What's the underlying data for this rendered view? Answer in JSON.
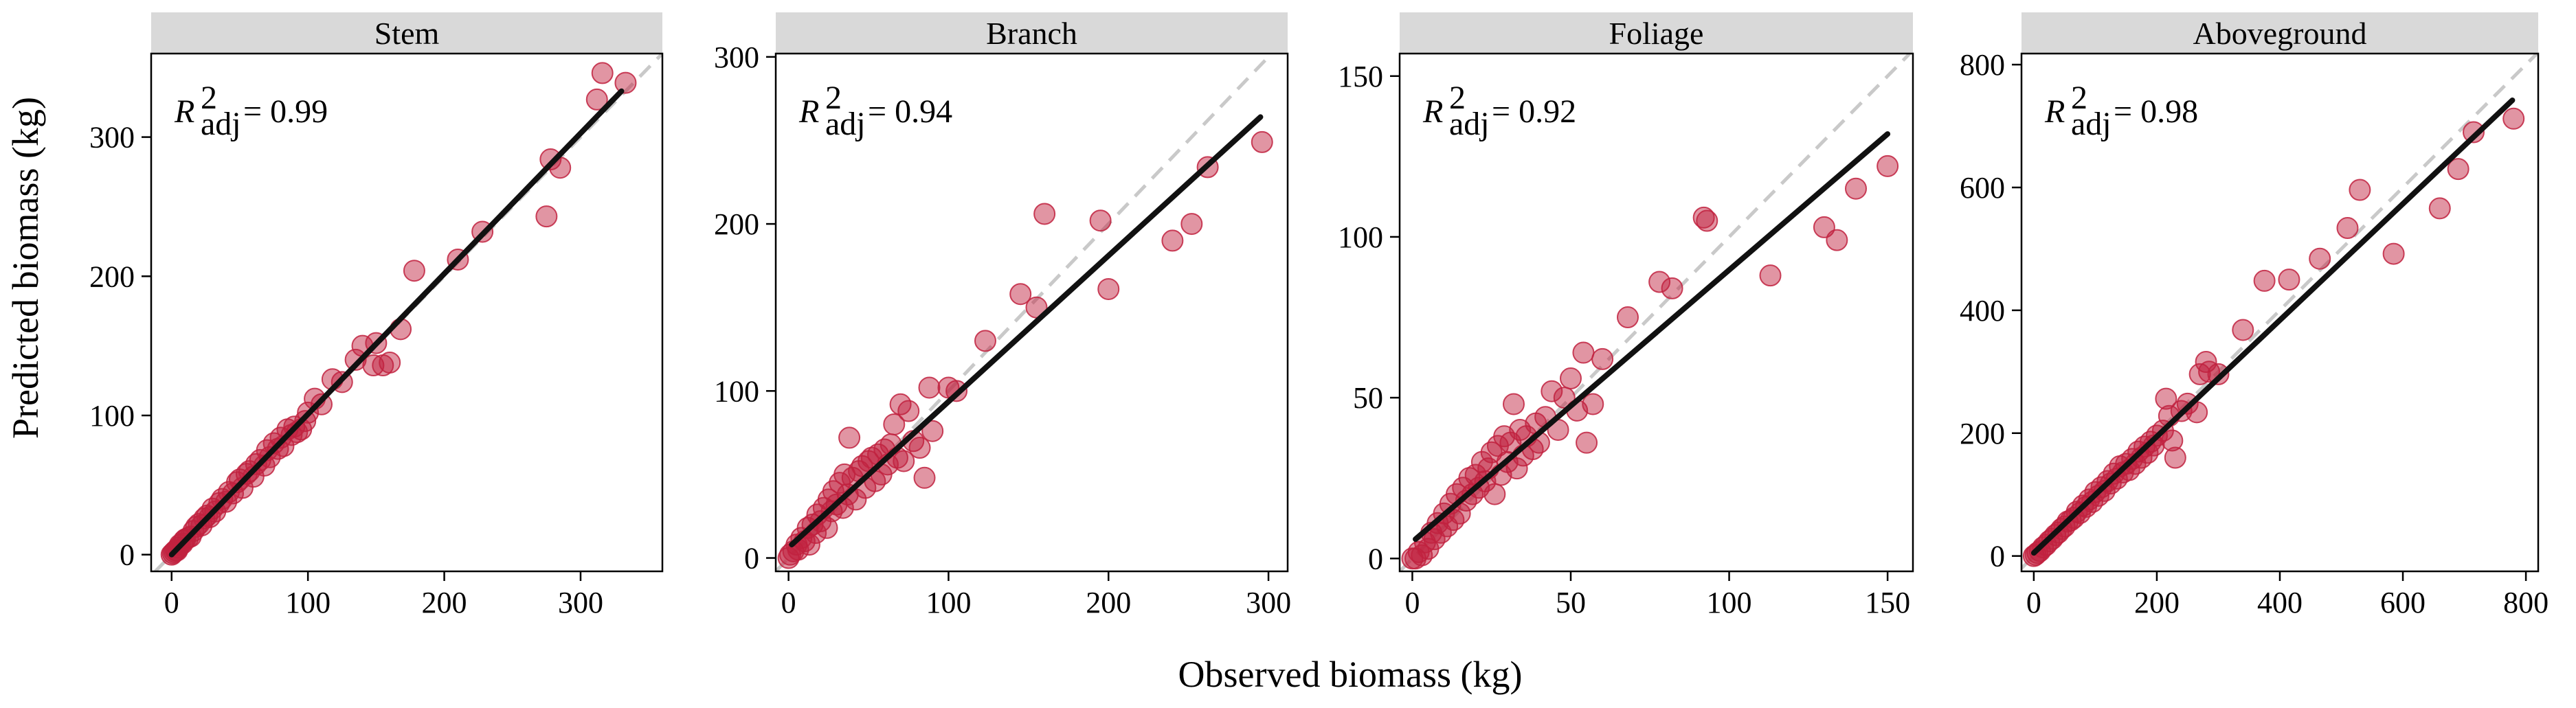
{
  "chart_data": {
    "type": "scatter",
    "xlabel": "Observed biomass (kg)",
    "ylabel": "Predicted biomass (kg)",
    "colors": {
      "point": "#c1223f",
      "fit_line": "#111111",
      "identity_line": "#c9c9c9",
      "strip": "#d9d9d9"
    },
    "panels": [
      {
        "title": "Stem",
        "r2_symbol": "R",
        "r2_sup": "2",
        "r2_sub": "adj",
        "r2_value": "= 0.99",
        "xlim": [
          -15,
          360
        ],
        "ylim": [
          -12,
          360
        ],
        "xticks": [
          0,
          100,
          200,
          300
        ],
        "yticks": [
          0,
          100,
          200,
          300
        ],
        "fit_line": [
          [
            0,
            0
          ],
          [
            330,
            333
          ]
        ],
        "points": [
          [
            0,
            0
          ],
          [
            1,
            1
          ],
          [
            2,
            2
          ],
          [
            3,
            3
          ],
          [
            4,
            3
          ],
          [
            5,
            5
          ],
          [
            6,
            7
          ],
          [
            8,
            8
          ],
          [
            9,
            10
          ],
          [
            10,
            11
          ],
          [
            12,
            12
          ],
          [
            14,
            13
          ],
          [
            16,
            17
          ],
          [
            18,
            20
          ],
          [
            20,
            22
          ],
          [
            22,
            21
          ],
          [
            24,
            26
          ],
          [
            26,
            28
          ],
          [
            28,
            27
          ],
          [
            30,
            33
          ],
          [
            32,
            31
          ],
          [
            35,
            37
          ],
          [
            37,
            40
          ],
          [
            40,
            38
          ],
          [
            42,
            45
          ],
          [
            45,
            44
          ],
          [
            48,
            52
          ],
          [
            50,
            54
          ],
          [
            52,
            48
          ],
          [
            55,
            58
          ],
          [
            57,
            60
          ],
          [
            60,
            56
          ],
          [
            62,
            65
          ],
          [
            65,
            68
          ],
          [
            68,
            64
          ],
          [
            70,
            75
          ],
          [
            72,
            70
          ],
          [
            75,
            80
          ],
          [
            78,
            76
          ],
          [
            80,
            84
          ],
          [
            82,
            78
          ],
          [
            85,
            90
          ],
          [
            88,
            86
          ],
          [
            90,
            92
          ],
          [
            92,
            88
          ],
          [
            95,
            90
          ],
          [
            98,
            96
          ],
          [
            100,
            102
          ],
          [
            105,
            112
          ],
          [
            110,
            108
          ],
          [
            118,
            126
          ],
          [
            125,
            124
          ],
          [
            135,
            140
          ],
          [
            140,
            150
          ],
          [
            148,
            136
          ],
          [
            150,
            152
          ],
          [
            155,
            136
          ],
          [
            160,
            138
          ],
          [
            168,
            162
          ],
          [
            178,
            204
          ],
          [
            210,
            212
          ],
          [
            228,
            232
          ],
          [
            275,
            243
          ],
          [
            278,
            284
          ],
          [
            285,
            278
          ],
          [
            312,
            327
          ],
          [
            316,
            346
          ],
          [
            333,
            339
          ]
        ]
      },
      {
        "title": "Branch",
        "r2_symbol": "R",
        "r2_sup": "2",
        "r2_sub": "adj",
        "r2_value": "= 0.94",
        "xlim": [
          -8,
          312
        ],
        "ylim": [
          -8,
          302
        ],
        "xticks": [
          0,
          100,
          200,
          300
        ],
        "yticks": [
          0,
          100,
          200,
          300
        ],
        "fit_line": [
          [
            2,
            8
          ],
          [
            295,
            264
          ]
        ],
        "points": [
          [
            0,
            0
          ],
          [
            1,
            2
          ],
          [
            3,
            4
          ],
          [
            5,
            8
          ],
          [
            6,
            5
          ],
          [
            8,
            12
          ],
          [
            10,
            10
          ],
          [
            12,
            18
          ],
          [
            13,
            8
          ],
          [
            15,
            20
          ],
          [
            17,
            15
          ],
          [
            18,
            26
          ],
          [
            20,
            22
          ],
          [
            22,
            30
          ],
          [
            24,
            18
          ],
          [
            25,
            35
          ],
          [
            27,
            28
          ],
          [
            28,
            40
          ],
          [
            30,
            32
          ],
          [
            32,
            45
          ],
          [
            34,
            30
          ],
          [
            35,
            50
          ],
          [
            37,
            38
          ],
          [
            38,
            72
          ],
          [
            40,
            48
          ],
          [
            42,
            35
          ],
          [
            44,
            52
          ],
          [
            46,
            55
          ],
          [
            48,
            42
          ],
          [
            50,
            58
          ],
          [
            52,
            60
          ],
          [
            54,
            46
          ],
          [
            56,
            62
          ],
          [
            58,
            50
          ],
          [
            60,
            65
          ],
          [
            62,
            56
          ],
          [
            64,
            68
          ],
          [
            66,
            80
          ],
          [
            68,
            60
          ],
          [
            70,
            92
          ],
          [
            72,
            58
          ],
          [
            75,
            88
          ],
          [
            78,
            70
          ],
          [
            82,
            66
          ],
          [
            85,
            48
          ],
          [
            88,
            102
          ],
          [
            90,
            76
          ],
          [
            100,
            102
          ],
          [
            105,
            100
          ],
          [
            123,
            130
          ],
          [
            145,
            158
          ],
          [
            155,
            150
          ],
          [
            160,
            206
          ],
          [
            195,
            202
          ],
          [
            200,
            161
          ],
          [
            240,
            190
          ],
          [
            252,
            200
          ],
          [
            262,
            234
          ],
          [
            296,
            249
          ]
        ]
      },
      {
        "title": "Foliage",
        "r2_symbol": "R",
        "r2_sup": "2",
        "r2_sub": "adj",
        "r2_value": "= 0.92",
        "xlim": [
          -4,
          158
        ],
        "ylim": [
          -4,
          157
        ],
        "xticks": [
          0,
          50,
          100,
          150
        ],
        "yticks": [
          0,
          50,
          100,
          150
        ],
        "fit_line": [
          [
            1,
            6
          ],
          [
            150,
            132
          ]
        ],
        "points": [
          [
            0,
            0
          ],
          [
            1,
            0
          ],
          [
            2,
            2
          ],
          [
            3,
            1
          ],
          [
            4,
            5
          ],
          [
            5,
            3
          ],
          [
            6,
            8
          ],
          [
            7,
            6
          ],
          [
            8,
            11
          ],
          [
            9,
            8
          ],
          [
            10,
            14
          ],
          [
            11,
            10
          ],
          [
            12,
            17
          ],
          [
            13,
            12
          ],
          [
            14,
            20
          ],
          [
            15,
            14
          ],
          [
            16,
            22
          ],
          [
            17,
            18
          ],
          [
            18,
            25
          ],
          [
            19,
            20
          ],
          [
            20,
            26
          ],
          [
            21,
            22
          ],
          [
            22,
            30
          ],
          [
            23,
            24
          ],
          [
            24,
            28
          ],
          [
            25,
            33
          ],
          [
            26,
            20
          ],
          [
            27,
            35
          ],
          [
            28,
            26
          ],
          [
            29,
            38
          ],
          [
            30,
            30
          ],
          [
            31,
            36
          ],
          [
            32,
            48
          ],
          [
            33,
            28
          ],
          [
            34,
            40
          ],
          [
            35,
            32
          ],
          [
            36,
            38
          ],
          [
            38,
            34
          ],
          [
            39,
            42
          ],
          [
            40,
            36
          ],
          [
            42,
            44
          ],
          [
            44,
            52
          ],
          [
            46,
            40
          ],
          [
            48,
            50
          ],
          [
            50,
            56
          ],
          [
            52,
            46
          ],
          [
            54,
            64
          ],
          [
            55,
            36
          ],
          [
            57,
            48
          ],
          [
            60,
            62
          ],
          [
            68,
            75
          ],
          [
            78,
            86
          ],
          [
            82,
            84
          ],
          [
            92,
            106
          ],
          [
            93,
            105
          ],
          [
            113,
            88
          ],
          [
            130,
            103
          ],
          [
            134,
            99
          ],
          [
            140,
            115
          ],
          [
            150,
            122
          ]
        ]
      },
      {
        "title": "Aboveground",
        "r2_symbol": "R",
        "r2_sup": "2",
        "r2_sub": "adj",
        "r2_value": "= 0.98",
        "xlim": [
          -20,
          820
        ],
        "ylim": [
          -25,
          818
        ],
        "xticks": [
          0,
          200,
          400,
          600,
          800
        ],
        "yticks": [
          0,
          200,
          400,
          600,
          800
        ],
        "fit_line": [
          [
            0,
            5
          ],
          [
            778,
            742
          ]
        ],
        "points": [
          [
            0,
            0
          ],
          [
            3,
            2
          ],
          [
            6,
            5
          ],
          [
            10,
            8
          ],
          [
            15,
            14
          ],
          [
            20,
            18
          ],
          [
            25,
            24
          ],
          [
            30,
            28
          ],
          [
            35,
            34
          ],
          [
            40,
            38
          ],
          [
            45,
            44
          ],
          [
            50,
            48
          ],
          [
            55,
            56
          ],
          [
            60,
            58
          ],
          [
            65,
            62
          ],
          [
            70,
            72
          ],
          [
            75,
            70
          ],
          [
            80,
            82
          ],
          [
            85,
            80
          ],
          [
            90,
            92
          ],
          [
            95,
            88
          ],
          [
            100,
            104
          ],
          [
            105,
            98
          ],
          [
            110,
            112
          ],
          [
            115,
            106
          ],
          [
            120,
            122
          ],
          [
            125,
            118
          ],
          [
            130,
            134
          ],
          [
            135,
            126
          ],
          [
            140,
            146
          ],
          [
            145,
            136
          ],
          [
            150,
            150
          ],
          [
            155,
            140
          ],
          [
            160,
            158
          ],
          [
            165,
            150
          ],
          [
            170,
            170
          ],
          [
            175,
            160
          ],
          [
            180,
            178
          ],
          [
            185,
            168
          ],
          [
            190,
            186
          ],
          [
            195,
            180
          ],
          [
            200,
            196
          ],
          [
            210,
            204
          ],
          [
            215,
            256
          ],
          [
            220,
            228
          ],
          [
            225,
            188
          ],
          [
            230,
            160
          ],
          [
            240,
            236
          ],
          [
            250,
            248
          ],
          [
            265,
            234
          ],
          [
            270,
            296
          ],
          [
            280,
            316
          ],
          [
            285,
            300
          ],
          [
            300,
            296
          ],
          [
            340,
            368
          ],
          [
            375,
            448
          ],
          [
            415,
            450
          ],
          [
            465,
            484
          ],
          [
            510,
            534
          ],
          [
            530,
            596
          ],
          [
            585,
            492
          ],
          [
            660,
            566
          ],
          [
            690,
            630
          ],
          [
            715,
            690
          ],
          [
            780,
            712
          ]
        ]
      }
    ]
  }
}
